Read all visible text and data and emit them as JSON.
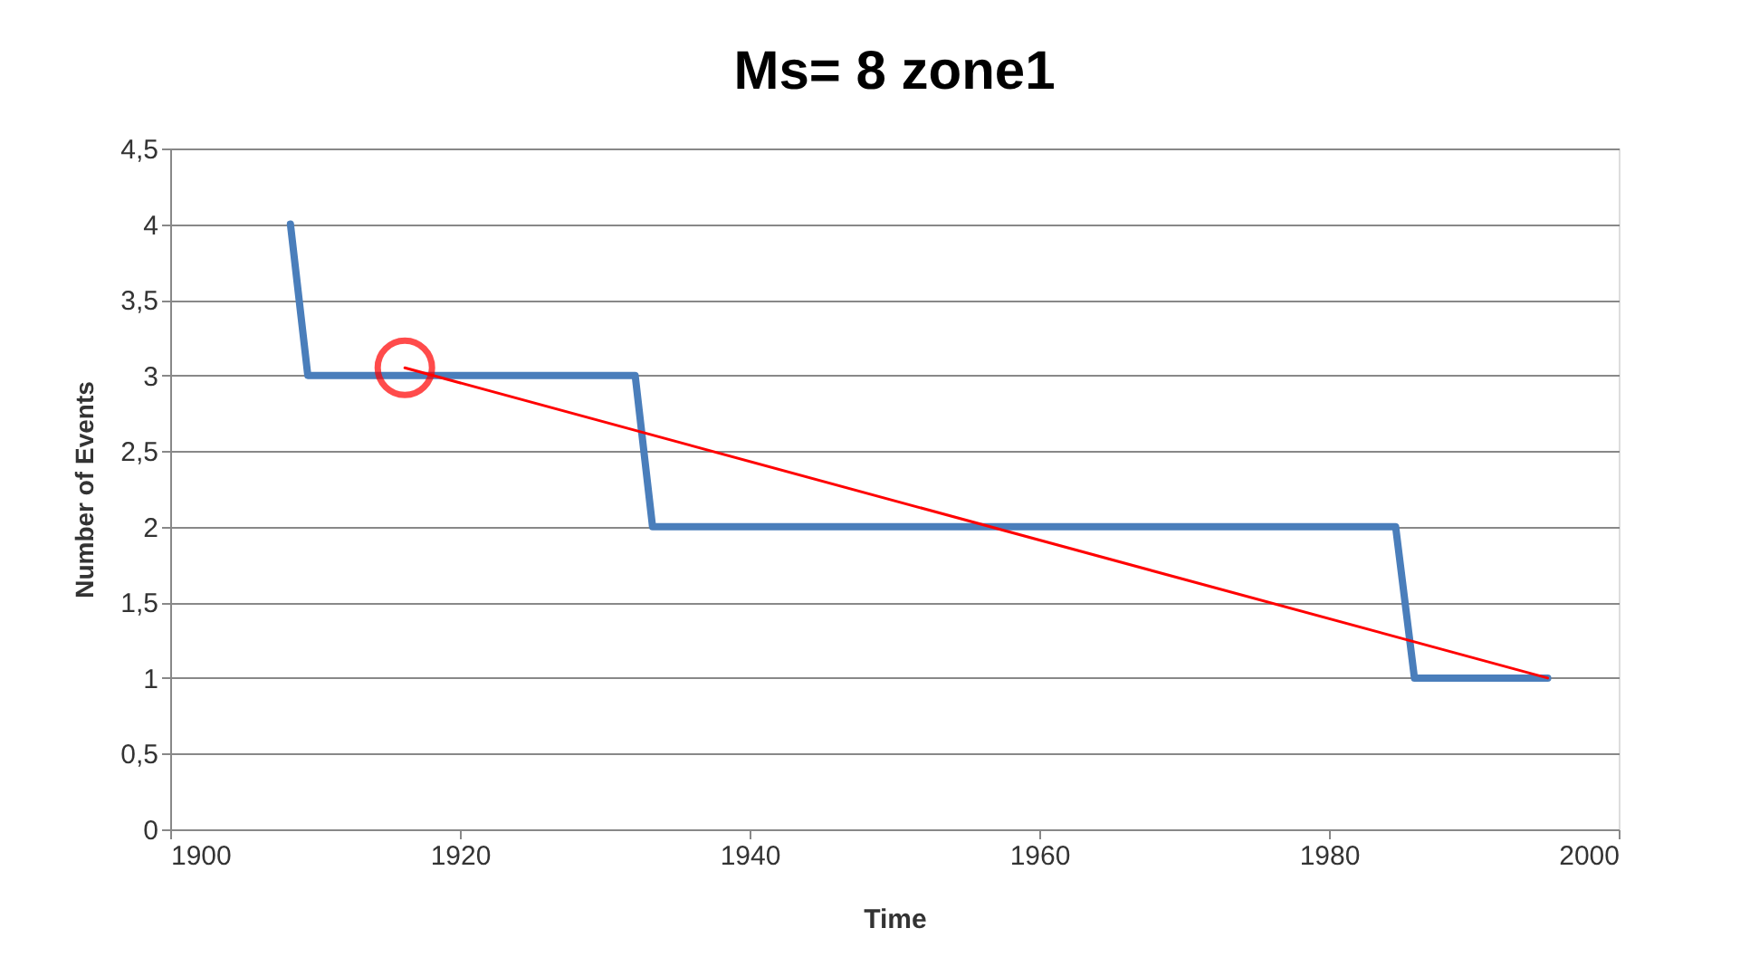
{
  "chart_data": {
    "type": "line",
    "title": "Ms= 8 zone1",
    "xlabel": "Time",
    "ylabel": "Number of Events",
    "xlim": [
      1900,
      2000
    ],
    "xticks": [
      1900,
      1920,
      1940,
      1960,
      1980,
      2000
    ],
    "ylim": [
      0,
      4.5
    ],
    "yticks": [
      0,
      {
        "value": 0.5,
        "label": "0,5"
      },
      1,
      {
        "value": 1.5,
        "label": "1,5"
      },
      2,
      {
        "value": 2.5,
        "label": "2,5"
      },
      3,
      {
        "value": 3.5,
        "label": "3,5"
      },
      4,
      {
        "value": 4.5,
        "label": "4,5"
      }
    ],
    "grid": "y",
    "marker": "none",
    "line_style": "solid",
    "series": [
      {
        "color": "#4a7ebb",
        "x": [
          1908.3,
          1909.5,
          1932.1,
          1933.3,
          1984.6,
          1985.9,
          1995.1
        ],
        "values": [
          4,
          3,
          3,
          2,
          2,
          1,
          1
        ]
      },
      {
        "type": "line",
        "color": "#ff0000",
        "x": [
          1916.2,
          1995.1
        ],
        "values": [
          3.05,
          1
        ]
      },
      {
        "type": "scatter",
        "color": "#ff0000",
        "marker": "circle",
        "x": [
          1916.2
        ],
        "values": [
          3.05
        ]
      }
    ]
  }
}
